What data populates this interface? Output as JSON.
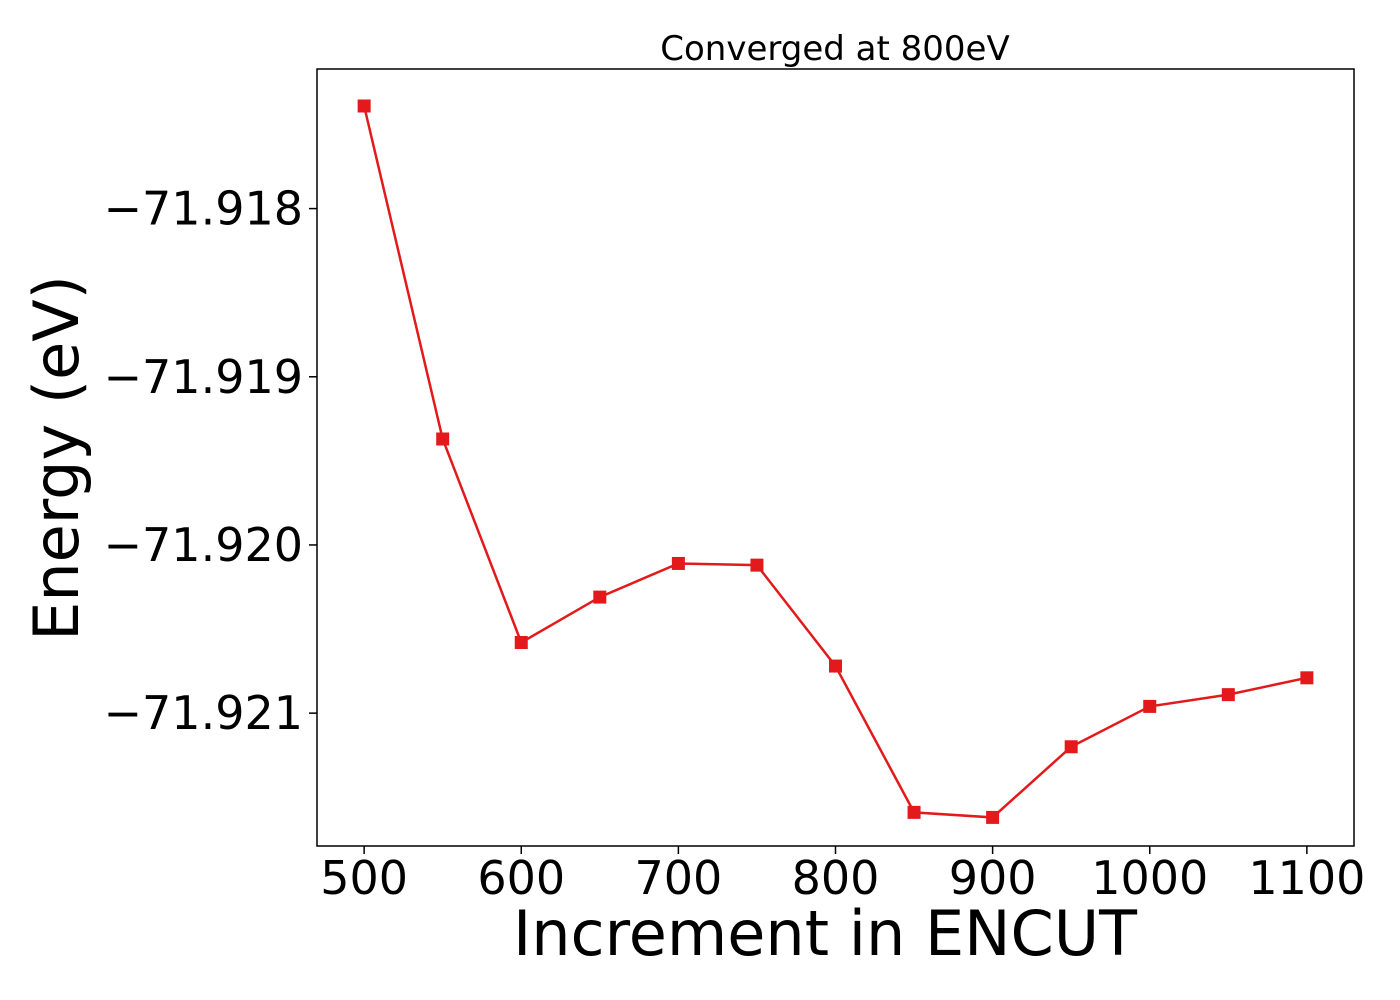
{
  "chart_data": {
    "type": "line",
    "title": "Converged at 800eV",
    "xlabel": "Increment in ENCUT",
    "ylabel": "Energy (eV)",
    "x": [
      500,
      550,
      600,
      650,
      700,
      750,
      800,
      850,
      900,
      950,
      1000,
      1050,
      1100
    ],
    "series": [
      {
        "values": [
          -71.91739,
          -71.91937,
          -71.92058,
          -71.92031,
          -71.92011,
          -71.92012,
          -71.92072,
          -71.92159,
          -71.92162,
          -71.9212,
          -71.92096,
          -71.92089,
          -71.92079
        ],
        "color": "#e31a1c",
        "marker": "square"
      }
    ],
    "xlim": [
      470,
      1130
    ],
    "ylim": [
      -71.92179,
      -71.91717
    ],
    "xticks": [
      500,
      600,
      700,
      800,
      900,
      1000,
      1100
    ],
    "xtick_labels": [
      "500",
      "600",
      "700",
      "800",
      "900",
      "1000",
      "1100"
    ],
    "yticks": [
      -71.918,
      -71.919,
      -71.92,
      -71.921
    ],
    "ytick_labels": [
      "−71.918",
      "−71.919",
      "−71.920",
      "−71.921"
    ],
    "grid": false,
    "legend": null
  }
}
